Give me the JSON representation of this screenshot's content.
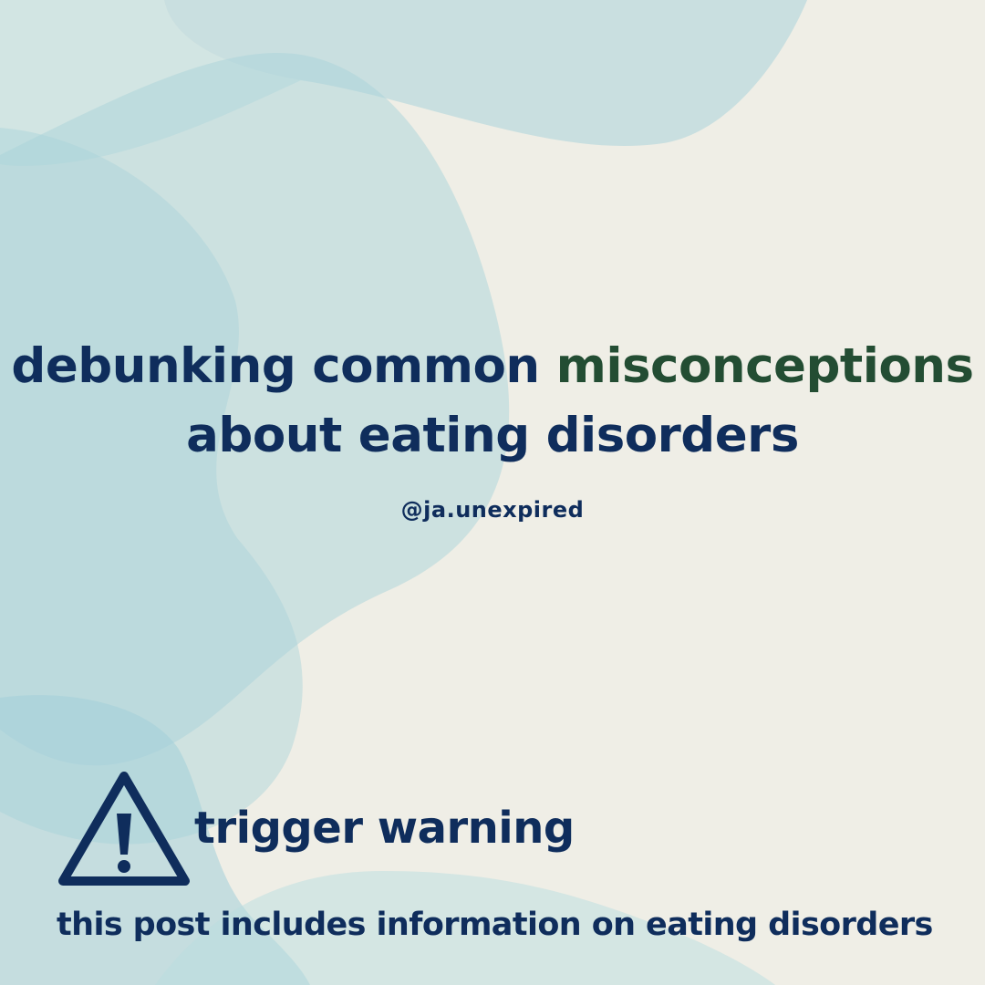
{
  "title": {
    "line1_part1": "debunking common",
    "line1_accent": "misconceptions",
    "line2": "about eating disorders"
  },
  "handle": "@ja.unexpired",
  "warning": {
    "icon": "warning-triangle-icon",
    "title": "trigger warning",
    "text": "this post includes information on eating disorders"
  },
  "colors": {
    "background": "#efeee6",
    "text_primary": "#0f2d5c",
    "text_accent": "#234d33",
    "blob": "#a9d3da"
  }
}
